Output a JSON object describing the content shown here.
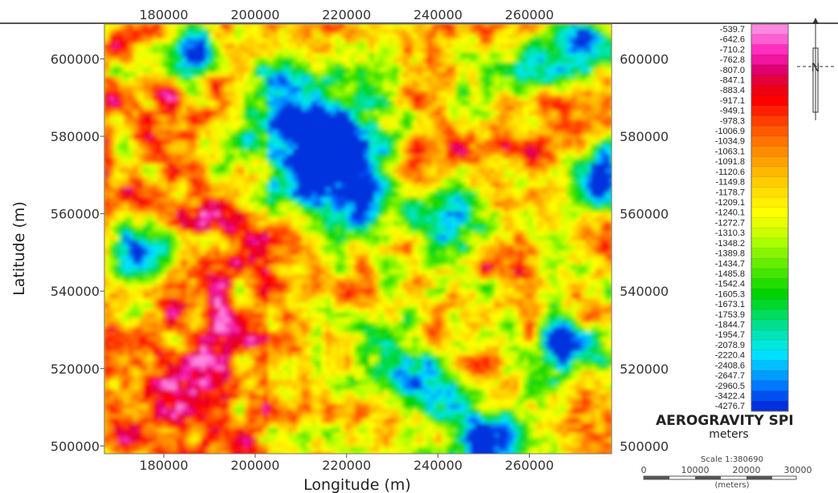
{
  "map": {
    "title": "AEROGRAVITY SPI",
    "units": "meters",
    "x_axis": {
      "label": "Longitude (m)",
      "ticks": [
        "180000",
        "200000",
        "220000",
        "240000",
        "260000"
      ],
      "tick_values": [
        180000,
        200000,
        220000,
        240000,
        260000
      ],
      "range": [
        167000,
        278000
      ]
    },
    "y_axis": {
      "label": "Latitude (m)",
      "ticks": [
        "600000",
        "580000",
        "560000",
        "540000",
        "520000",
        "500000"
      ],
      "tick_values": [
        600000,
        580000,
        560000,
        540000,
        520000,
        500000
      ],
      "range": [
        498000,
        609000
      ]
    },
    "legend": {
      "values": [
        "-539.7",
        "-642.6",
        "-710.2",
        "-762.8",
        "-807.0",
        "-847.1",
        "-883.4",
        "-917.1",
        "-949.1",
        "-978.3",
        "-1006.9",
        "-1034.9",
        "-1063.1",
        "-1091.8",
        "-1120.6",
        "-1149.8",
        "-1178.7",
        "-1209.1",
        "-1240.1",
        "-1272.7",
        "-1310.3",
        "-1348.2",
        "-1389.8",
        "-1434.7",
        "-1485.8",
        "-1542.4",
        "-1605.3",
        "-1673.1",
        "-1753.9",
        "-1844.7",
        "-1954.7",
        "-2078.9",
        "-2220.4",
        "-2408.6",
        "-2647.7",
        "-2960.5",
        "-3422.4",
        "-4276.7"
      ],
      "colors": [
        "#ff88e0",
        "#ff5fd2",
        "#ff2ec0",
        "#f0149e",
        "#e0006f",
        "#e4003a",
        "#ee0012",
        "#ff0000",
        "#ff2000",
        "#ff3f00",
        "#ff5a00",
        "#ff7400",
        "#ff8c00",
        "#ffa200",
        "#ffb800",
        "#ffcc00",
        "#ffde00",
        "#ffef00",
        "#ffff00",
        "#e8ff00",
        "#ccff00",
        "#aaff00",
        "#88f500",
        "#66ee00",
        "#44e600",
        "#22dd00",
        "#00d400",
        "#00d82c",
        "#00dc5c",
        "#00e08c",
        "#00e4b8",
        "#00e8dc",
        "#00dfff",
        "#00bfff",
        "#009cff",
        "#0078ff",
        "#0050f0",
        "#0030dd"
      ]
    },
    "scale": {
      "text": "Scale 1:380690",
      "ticks": [
        "0",
        "10000",
        "20000",
        "30000"
      ],
      "units": "(meters)"
    },
    "north_label": "N"
  }
}
